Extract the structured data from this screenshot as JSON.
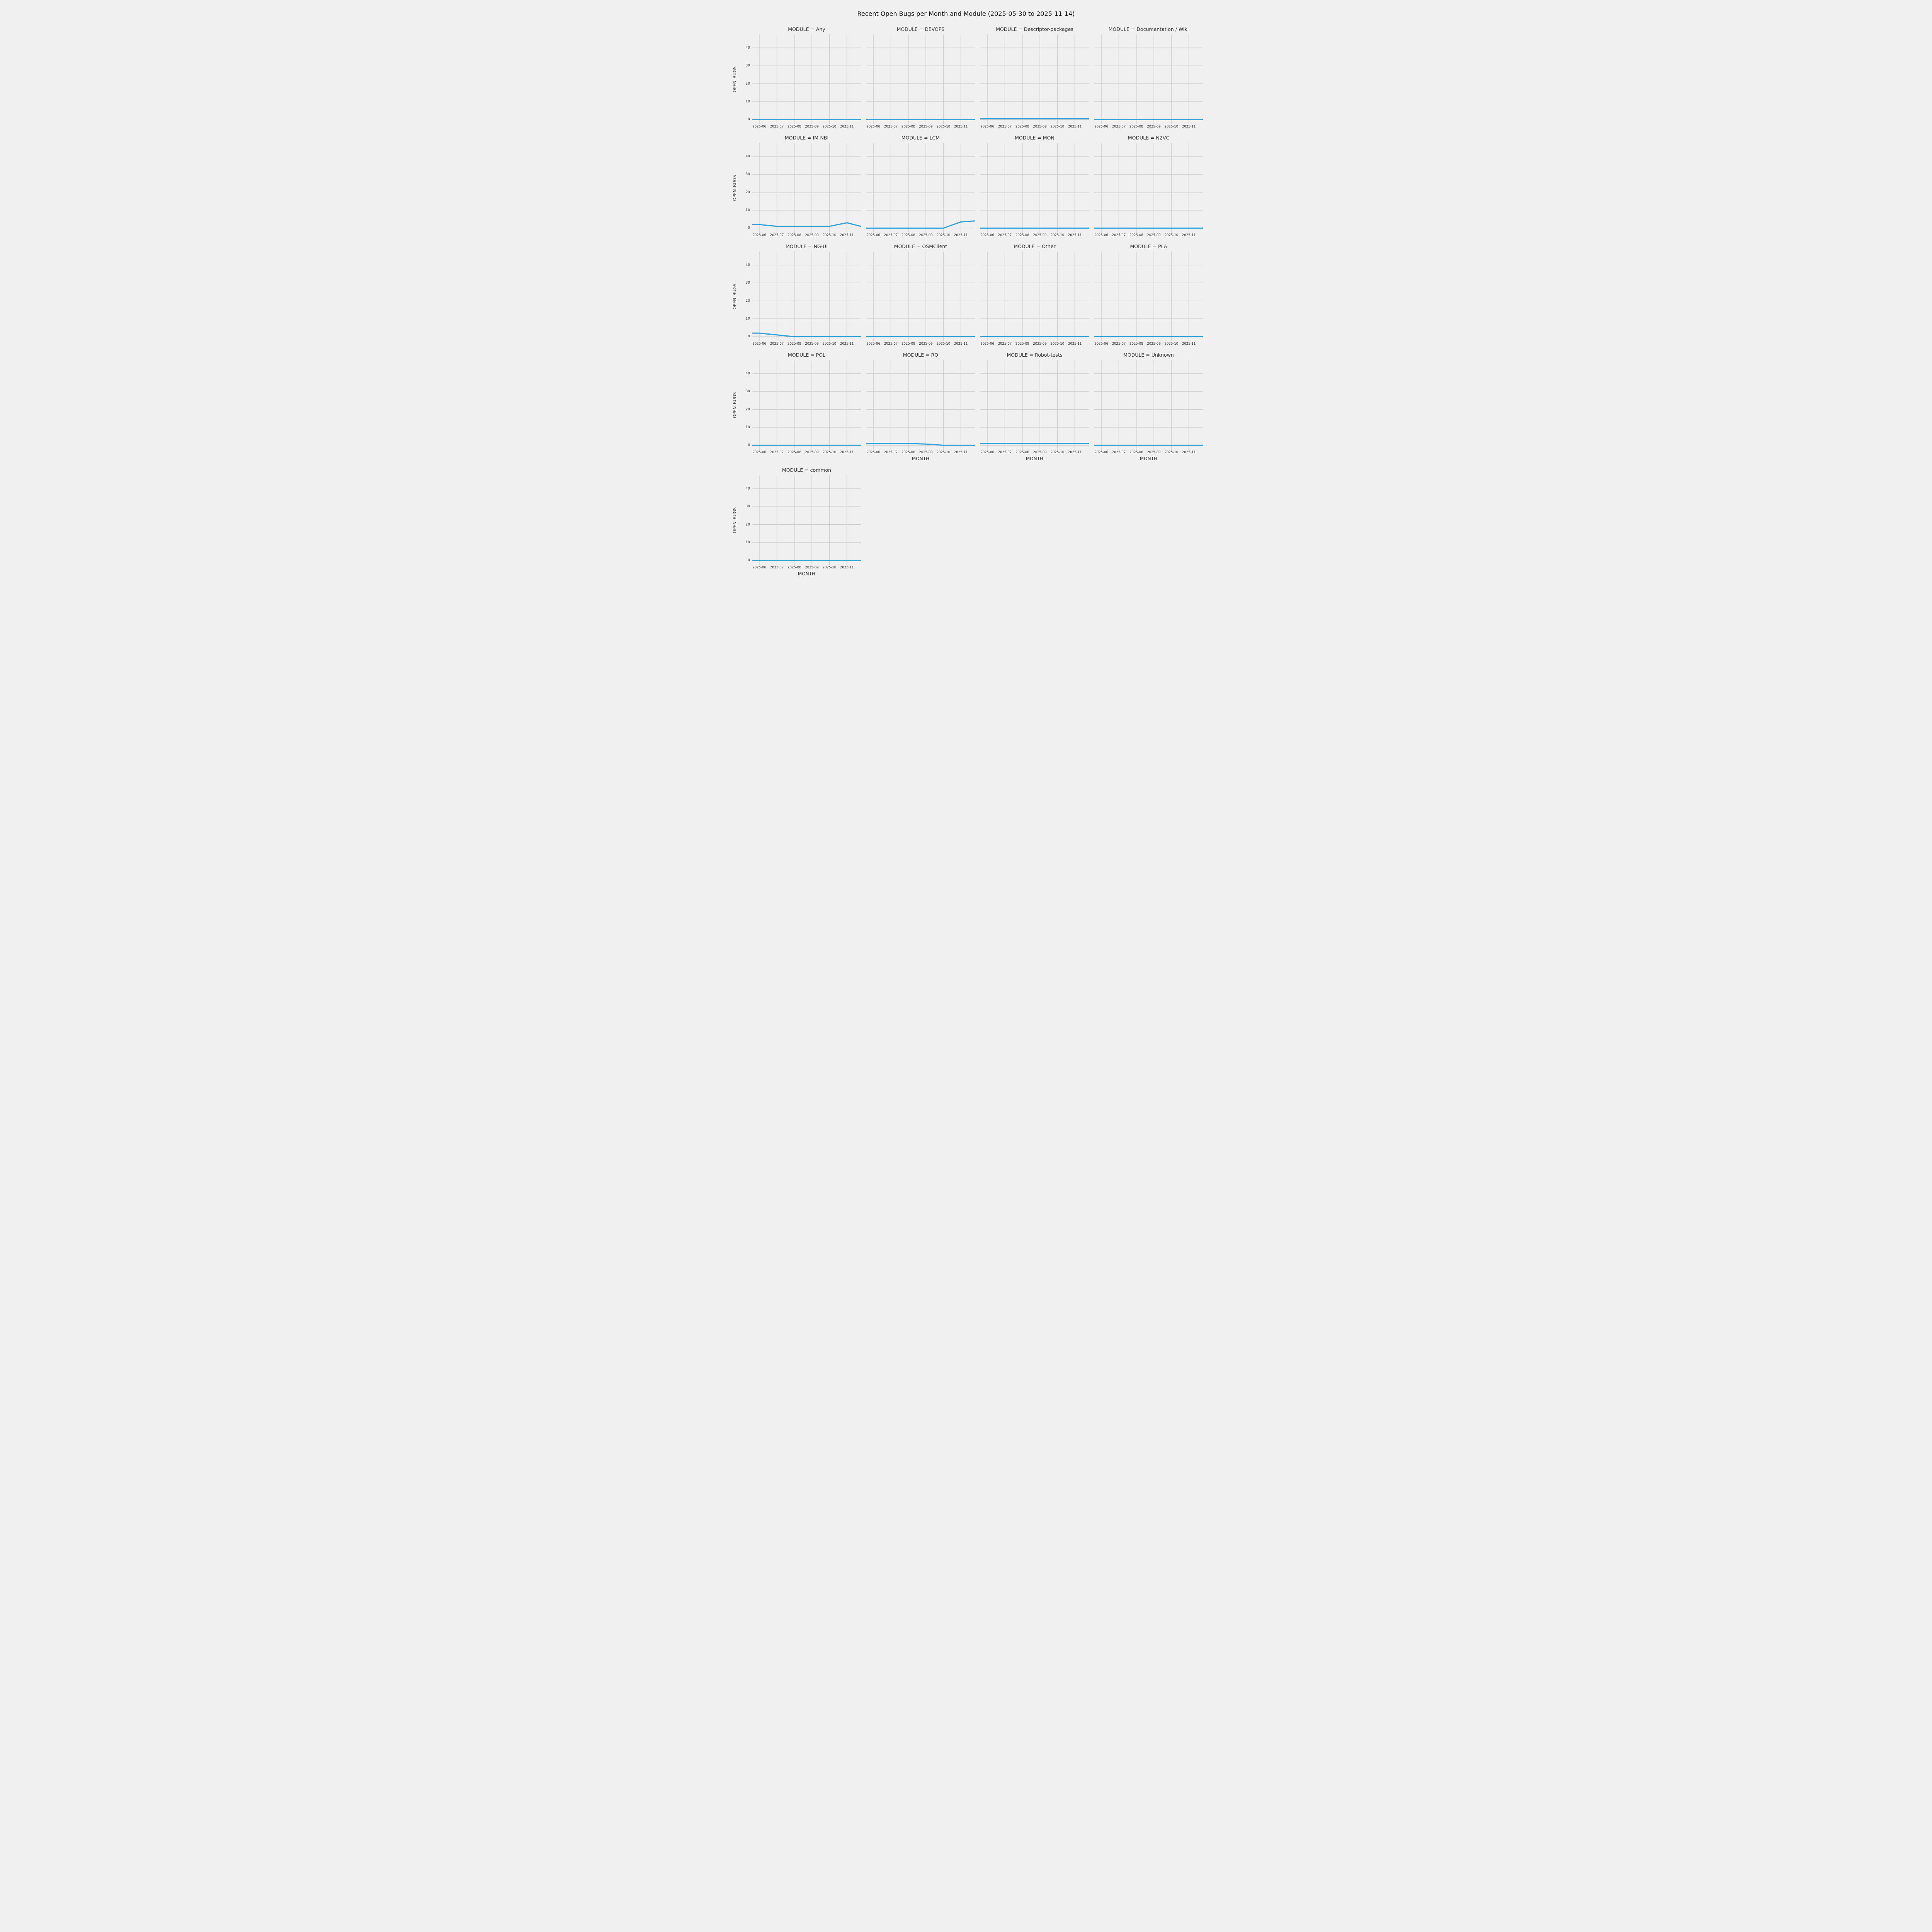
{
  "chart_data": {
    "type": "line",
    "title": "Recent Open Bugs per Month and Module (2025-05-30 to 2025-11-14)",
    "xlabel": "MONTH",
    "ylabel": "OPEN_BUGS",
    "x_ticks": [
      "2025-06",
      "2025-07",
      "2025-08",
      "2025-09",
      "2025-10",
      "2025-11"
    ],
    "y_ticks": [
      0,
      10,
      20,
      30,
      40
    ],
    "xlim": [
      -0.4,
      5.8
    ],
    "ylim": [
      -2.5,
      47.5
    ],
    "line_color": "#30a2da",
    "grid_color": "#cbcbcb",
    "background_color": "#f0f0f0",
    "legend": "none",
    "grid": true,
    "facets": [
      {
        "module": "Any",
        "title": "MODULE = Any",
        "show_xlabel": false,
        "points": [
          [
            -0.4,
            0
          ],
          [
            5.8,
            0
          ]
        ]
      },
      {
        "module": "DEVOPS",
        "title": "MODULE = DEVOPS",
        "show_xlabel": false,
        "points": [
          [
            -0.4,
            0
          ],
          [
            5.8,
            0
          ]
        ]
      },
      {
        "module": "Descriptor-packages",
        "title": "MODULE = Descriptor-packages",
        "show_xlabel": false,
        "points": [
          [
            -0.4,
            0.5
          ],
          [
            5.8,
            0.5
          ]
        ]
      },
      {
        "module": "Documentation / Wiki",
        "title": "MODULE = Documentation / Wiki",
        "show_xlabel": false,
        "points": [
          [
            -0.4,
            0
          ],
          [
            5.8,
            0
          ]
        ]
      },
      {
        "module": "IM-NBI",
        "title": "MODULE = IM-NBI",
        "show_xlabel": false,
        "points": [
          [
            -0.4,
            2
          ],
          [
            0,
            2
          ],
          [
            1,
            1
          ],
          [
            2,
            1
          ],
          [
            3,
            1
          ],
          [
            4,
            1
          ],
          [
            5,
            3
          ],
          [
            5.8,
            1
          ]
        ]
      },
      {
        "module": "LCM",
        "title": "MODULE = LCM",
        "show_xlabel": false,
        "points": [
          [
            -0.4,
            0
          ],
          [
            0,
            0
          ],
          [
            1,
            0
          ],
          [
            2,
            0
          ],
          [
            3,
            0
          ],
          [
            4,
            0
          ],
          [
            5,
            3.5
          ],
          [
            5.8,
            4
          ]
        ]
      },
      {
        "module": "MON",
        "title": "MODULE = MON",
        "show_xlabel": false,
        "points": [
          [
            -0.4,
            0
          ],
          [
            5.8,
            0
          ]
        ]
      },
      {
        "module": "N2VC",
        "title": "MODULE = N2VC",
        "show_xlabel": false,
        "points": [
          [
            -0.4,
            0
          ],
          [
            5.8,
            0
          ]
        ]
      },
      {
        "module": "NG-UI",
        "title": "MODULE = NG-UI",
        "show_xlabel": false,
        "points": [
          [
            -0.4,
            2
          ],
          [
            0,
            2
          ],
          [
            1,
            1
          ],
          [
            2,
            0
          ],
          [
            3,
            0
          ],
          [
            4,
            0
          ],
          [
            5,
            0
          ],
          [
            5.8,
            0
          ]
        ]
      },
      {
        "module": "OSMClient",
        "title": "MODULE = OSMClient",
        "show_xlabel": false,
        "points": [
          [
            -0.4,
            0
          ],
          [
            5.8,
            0
          ]
        ]
      },
      {
        "module": "Other",
        "title": "MODULE = Other",
        "show_xlabel": false,
        "points": [
          [
            -0.4,
            0
          ],
          [
            5.8,
            0
          ]
        ]
      },
      {
        "module": "PLA",
        "title": "MODULE = PLA",
        "show_xlabel": false,
        "points": [
          [
            -0.4,
            0
          ],
          [
            5.8,
            0
          ]
        ]
      },
      {
        "module": "POL",
        "title": "MODULE = POL",
        "show_xlabel": false,
        "points": [
          [
            -0.4,
            0
          ],
          [
            5.8,
            0
          ]
        ]
      },
      {
        "module": "RO",
        "title": "MODULE = RO",
        "show_xlabel": true,
        "points": [
          [
            -0.4,
            1
          ],
          [
            0,
            1
          ],
          [
            1,
            1
          ],
          [
            2,
            1
          ],
          [
            3,
            0.7
          ],
          [
            4,
            0
          ],
          [
            5,
            0
          ],
          [
            5.8,
            0
          ]
        ]
      },
      {
        "module": "Robot-tests",
        "title": "MODULE = Robot-tests",
        "show_xlabel": true,
        "points": [
          [
            -0.4,
            1
          ],
          [
            5.8,
            1
          ]
        ]
      },
      {
        "module": "Unknown",
        "title": "MODULE = Unknown",
        "show_xlabel": true,
        "points": [
          [
            -0.4,
            0
          ],
          [
            5.8,
            0
          ]
        ]
      },
      {
        "module": "common",
        "title": "MODULE = common",
        "show_xlabel": true,
        "points": [
          [
            -0.4,
            0
          ],
          [
            5.8,
            0
          ]
        ]
      }
    ]
  }
}
